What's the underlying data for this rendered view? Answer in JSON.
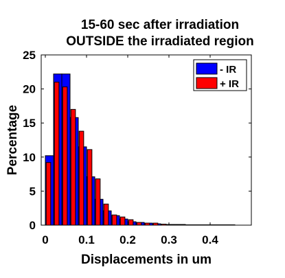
{
  "chart_data": {
    "type": "bar",
    "title": [
      "15-60 sec after irradiation",
      "OUTSIDE the irradiated region"
    ],
    "xlabel": "Displacements in um",
    "ylabel": "Percentage",
    "xlim": [
      -0.01,
      0.5
    ],
    "ylim": [
      0,
      25
    ],
    "xticks": [
      0,
      0.1,
      0.2,
      0.3,
      0.4
    ],
    "xtick_labels": [
      "0",
      "0.1",
      "0.2",
      "0.3",
      "0.4"
    ],
    "yticks": [
      0,
      5,
      10,
      15,
      20,
      25
    ],
    "ytick_labels": [
      "0",
      "5",
      "10",
      "15",
      "20",
      "25"
    ],
    "bin_width": 0.02,
    "x": [
      0.01,
      0.03,
      0.05,
      0.07,
      0.09,
      0.11,
      0.13,
      0.15,
      0.17,
      0.19,
      0.21,
      0.23,
      0.25,
      0.27,
      0.29,
      0.31,
      0.33,
      0.35,
      0.37,
      0.39,
      0.41,
      0.43,
      0.45
    ],
    "series": [
      {
        "name": "- IR",
        "color": "#0000ff",
        "values": [
          10.2,
          22.2,
          22.2,
          15.8,
          11.5,
          7.1,
          3.8,
          2.1,
          1.4,
          0.9,
          0.5,
          0.4,
          0.3,
          0.2,
          0.1,
          0.1,
          0.1,
          0.05,
          0.05,
          0.05,
          0.05,
          0.05,
          0.05
        ]
      },
      {
        "name": "+ IR",
        "color": "#ff0000",
        "values": [
          9.2,
          21.0,
          20.3,
          17.0,
          13.8,
          11.1,
          6.8,
          3.1,
          1.5,
          1.2,
          0.8,
          0.4,
          0.3,
          0.3,
          0.15,
          0.1,
          0.05,
          0.05,
          0.05,
          0.05,
          0.05,
          0.05,
          0.05
        ]
      }
    ],
    "legend_position": "top-right",
    "grid": false
  }
}
